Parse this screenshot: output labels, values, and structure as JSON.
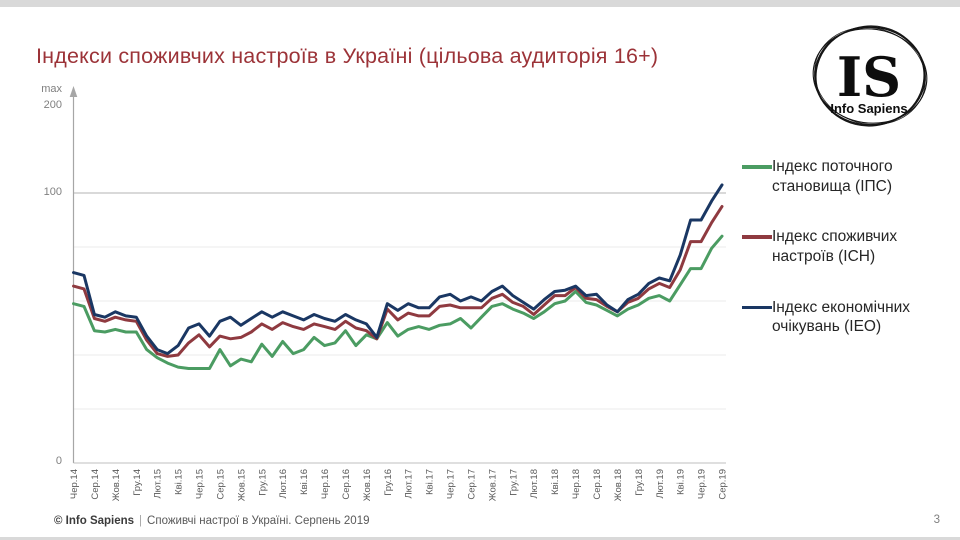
{
  "slide": {
    "title": "Індекси споживчих настроїв в Україні (цільова аудиторія 16+)",
    "page_number": "3",
    "footer_brand": "© Info Sapiens",
    "footer_separator": "|",
    "footer_note": "Споживчі настрої в Україні. Серпень 2019"
  },
  "logo": {
    "monogram": "IS",
    "name": "Info Sapiens"
  },
  "axis": {
    "max_label": "max",
    "top_value": "200",
    "mid_value": "100",
    "zero_value": "0"
  },
  "legend": [
    {
      "label": "Індекс поточного становища (ІПС)",
      "color": "#4b9c62"
    },
    {
      "label": "Індекс споживчих настроїв (ІСН)",
      "color": "#8f3a40"
    },
    {
      "label": "Індекс економічних очікувань (ІЕО)",
      "color": "#1a3763"
    }
  ],
  "chart_data": {
    "type": "line",
    "title": "Індекси споживчих настроїв в Україні (цільова аудиторія 16+)",
    "ylim": [
      0,
      200
    ],
    "y_axis_annotations": [
      "max",
      "200",
      "100",
      "0"
    ],
    "gridlines": {
      "major": [
        100
      ],
      "minor": [
        20,
        40,
        60,
        80
      ]
    },
    "legend_position": "right",
    "x_start": "Чер.14",
    "x_end": "Сер.19",
    "x_tick_every": 2,
    "x_tick_labels": [
      "Чер.14",
      "Сер.14",
      "Жов.14",
      "Гру.14",
      "Лют.15",
      "Кві.15",
      "Чер.15",
      "Сер.15",
      "Жов.15",
      "Гру.15",
      "Лют.16",
      "Кві.16",
      "Чер.16",
      "Сер.16",
      "Жов.16",
      "Гру.16",
      "Лют.17",
      "Кві.17",
      "Чер.17",
      "Сер.17",
      "Жов.17",
      "Гру.17",
      "Лют.18",
      "Кві.18",
      "Чер.18",
      "Сер.18",
      "Жов.18",
      "Гру.18",
      "Лют.19",
      "Кві.19",
      "Чер.19",
      "Сер.19"
    ],
    "series": [
      {
        "name": "Індекс поточного становища (ІПС)",
        "color": "#4b9c62",
        "values": [
          59,
          58,
          49,
          48.5,
          49.5,
          48.5,
          48.5,
          42,
          39,
          37,
          35.5,
          35,
          35,
          35,
          42,
          36,
          38.5,
          37.5,
          44,
          39.5,
          45,
          40.5,
          42,
          46.5,
          43.5,
          44.5,
          49,
          43.5,
          47.5,
          46,
          52,
          47,
          49.5,
          50.5,
          49.5,
          51,
          51.5,
          53.5,
          50,
          54,
          58,
          59,
          57,
          55.5,
          53.5,
          56,
          59,
          60,
          63.5,
          59.5,
          58.5,
          56.5,
          54.5,
          57,
          58.5,
          61,
          62,
          60,
          66,
          72,
          72,
          79.5,
          84
        ]
      },
      {
        "name": "Індекс споживчих настроїв (ІСН)",
        "color": "#8f3a40",
        "values": [
          65.5,
          64.5,
          53.5,
          52.5,
          54,
          53,
          52.5,
          45.5,
          40.5,
          39.5,
          40,
          44.5,
          47.5,
          43,
          47,
          46,
          46.5,
          48.5,
          51.5,
          49.5,
          52,
          50.5,
          49.5,
          51.5,
          50.5,
          49.5,
          52.5,
          50,
          49,
          46,
          57,
          53,
          55.5,
          54.5,
          54.5,
          58,
          58.5,
          57.5,
          57.5,
          57.5,
          61,
          62.5,
          59.5,
          58,
          55,
          58.5,
          62,
          62,
          65,
          61,
          60.5,
          58,
          56,
          59.5,
          61,
          64.5,
          66.5,
          65,
          71.5,
          82,
          82,
          89,
          95
        ]
      },
      {
        "name": "Індекс економічних очікувань (ІЕО)",
        "color": "#1a3763",
        "values": [
          70.5,
          69.5,
          55,
          54,
          56,
          54.5,
          54,
          47,
          42,
          40.5,
          43.5,
          50,
          51.5,
          47,
          52.5,
          54,
          51,
          53.5,
          56,
          54,
          56,
          54.5,
          53,
          55,
          53.5,
          52.5,
          55,
          53,
          51.5,
          46.5,
          59,
          56.5,
          59,
          57.5,
          57.5,
          61.5,
          62.5,
          60,
          61.5,
          60,
          63.5,
          65.5,
          62,
          59.5,
          57,
          60.5,
          63.5,
          64,
          65.5,
          62,
          62.5,
          58.5,
          56,
          60.5,
          62.5,
          66.5,
          68.5,
          67.5,
          77,
          90,
          90,
          97,
          103
        ]
      }
    ]
  }
}
